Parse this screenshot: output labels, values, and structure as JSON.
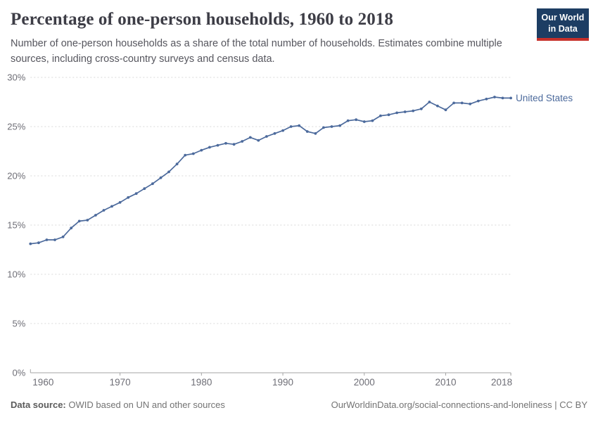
{
  "header": {
    "title": "Percentage of one-person households, 1960 to 2018",
    "subtitle": "Number of one-person households as a share of the total number of households. Estimates combine multiple sources, including cross-country surveys and census data.",
    "logo": {
      "line1": "Our World",
      "line2": "in Data",
      "bg_color": "#1d3d63",
      "accent_color": "#c7302a"
    }
  },
  "chart_data": {
    "type": "line",
    "title": "Percentage of one-person households, 1960 to 2018",
    "xlabel": "",
    "ylabel": "",
    "grid": "horizontal-dashed",
    "legend_position": "end-of-line",
    "xlim": [
      1959,
      2018
    ],
    "ylim": [
      0,
      30
    ],
    "x_ticks": [
      1960,
      1970,
      1980,
      1990,
      2000,
      2010,
      2018
    ],
    "y_ticks": [
      0,
      5,
      10,
      15,
      20,
      25,
      30
    ],
    "y_tick_suffix": "%",
    "series": [
      {
        "name": "United States",
        "color": "#4C6A9C",
        "x": [
          1959,
          1960,
          1961,
          1962,
          1963,
          1964,
          1965,
          1966,
          1967,
          1968,
          1969,
          1970,
          1971,
          1972,
          1973,
          1974,
          1975,
          1976,
          1977,
          1978,
          1979,
          1980,
          1981,
          1982,
          1983,
          1984,
          1985,
          1986,
          1987,
          1988,
          1989,
          1990,
          1991,
          1992,
          1993,
          1994,
          1995,
          1996,
          1997,
          1998,
          1999,
          2000,
          2001,
          2002,
          2003,
          2004,
          2005,
          2006,
          2007,
          2008,
          2009,
          2010,
          2011,
          2012,
          2013,
          2014,
          2015,
          2016,
          2017,
          2018
        ],
        "values": [
          13.1,
          13.2,
          13.5,
          13.5,
          13.8,
          14.7,
          15.4,
          15.5,
          16.0,
          16.5,
          16.9,
          17.3,
          17.8,
          18.2,
          18.7,
          19.2,
          19.8,
          20.4,
          21.2,
          22.1,
          22.25,
          22.6,
          22.9,
          23.1,
          23.3,
          23.2,
          23.5,
          23.9,
          23.6,
          24.0,
          24.3,
          24.6,
          25.0,
          25.1,
          24.5,
          24.3,
          24.9,
          25.0,
          25.1,
          25.6,
          25.7,
          25.5,
          25.6,
          26.1,
          26.2,
          26.4,
          26.5,
          26.6,
          26.8,
          27.5,
          27.1,
          26.7,
          27.4,
          27.4,
          27.3,
          27.6,
          27.8,
          28.0,
          27.9,
          27.9
        ]
      }
    ]
  },
  "footer": {
    "source_label": "Data source:",
    "source_text": " OWID based on UN and other sources",
    "link_text": "OurWorldinData.org/social-connections-and-loneliness | CC BY"
  }
}
